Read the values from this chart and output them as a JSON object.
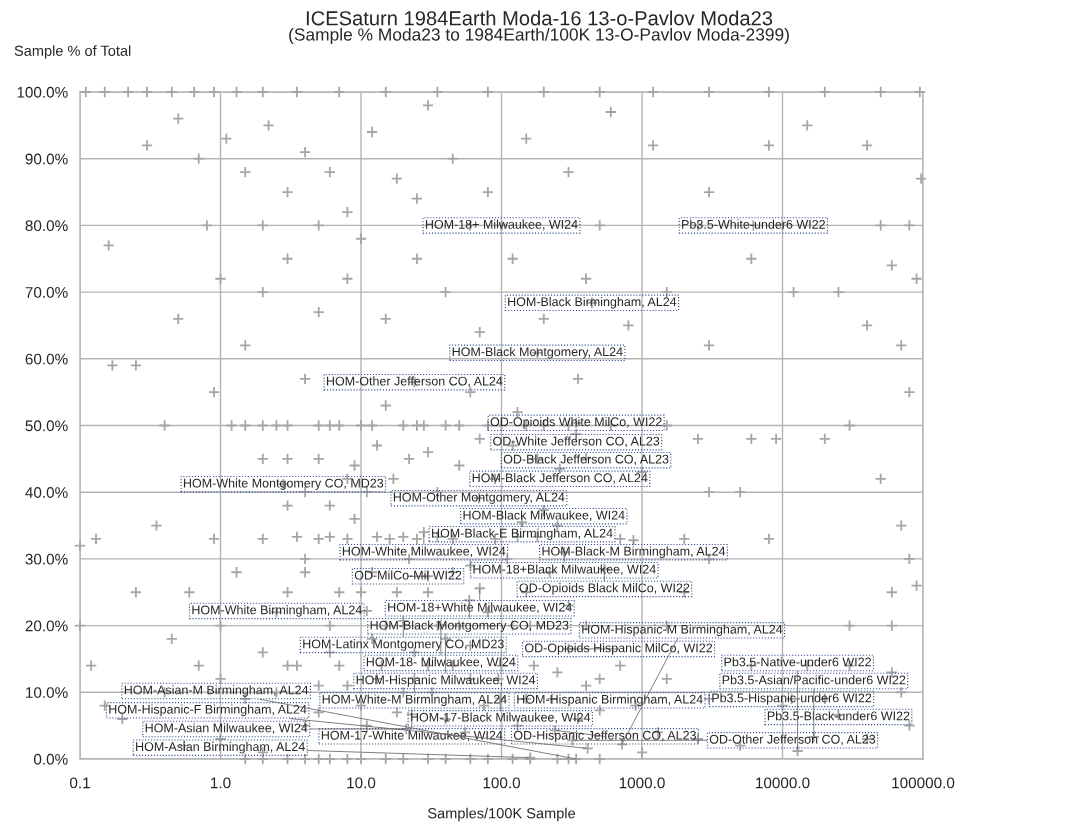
{
  "chart_data": {
    "type": "scatter",
    "title": "ICESaturn 1984Earth Moda-16 13-o-Pavlov Moda23",
    "subtitle": "(Sample % Moda23 to 1984Earth/100K 13-O-Pavlov Moda-2399)",
    "xlabel": "Samples/100K Sample",
    "ylabel": "Sample % of Total",
    "log": "x",
    "grid": true,
    "marker": "cross",
    "xlim": [
      0.1,
      100000
    ],
    "xticks": [
      {
        "value": 0.1,
        "label": "0.1"
      },
      {
        "value": 1,
        "label": "1.0"
      },
      {
        "value": 10,
        "label": "10.0"
      },
      {
        "value": 100,
        "label": "100.0"
      },
      {
        "value": 1000,
        "label": "1000.0"
      },
      {
        "value": 10000,
        "label": "10000.0"
      },
      {
        "value": 100000,
        "label": "100000.0"
      }
    ],
    "ylim": [
      0,
      100
    ],
    "yticks": [
      {
        "value": 0,
        "label": "0.0%"
      },
      {
        "value": 10,
        "label": "10.0%"
      },
      {
        "value": 20,
        "label": "20.0%"
      },
      {
        "value": 30,
        "label": "30.0%"
      },
      {
        "value": 40,
        "label": "40.0%"
      },
      {
        "value": 50,
        "label": "50.0%"
      },
      {
        "value": 60,
        "label": "60.0%"
      },
      {
        "value": 70,
        "label": "70.0%"
      },
      {
        "value": 80,
        "label": "80.0%"
      },
      {
        "value": 90,
        "label": "90.0%"
      },
      {
        "value": 100,
        "label": "100.0%"
      }
    ],
    "series": [
      {
        "color": "#a6a6a6",
        "x": [
          0.11,
          0.15,
          0.22,
          0.3,
          0.45,
          0.65,
          0.9,
          1.3,
          2,
          3.5,
          7,
          15,
          35,
          80,
          200,
          500,
          1200,
          3000,
          8000,
          20000,
          50000,
          95000,
          0.3,
          0.5,
          0.7,
          1.1,
          1.5,
          2.2,
          3,
          4,
          6,
          8,
          12,
          18,
          30,
          45,
          80,
          150,
          300,
          600,
          1200,
          3000,
          8000,
          15000,
          40000,
          97000,
          0.16,
          0.8,
          2,
          5,
          10,
          25,
          60,
          500,
          2500,
          10000,
          50000,
          80000,
          0.17,
          0.25,
          0.5,
          1,
          1.5,
          2,
          3,
          5,
          8,
          15,
          25,
          40,
          70,
          120,
          200,
          400,
          800,
          1500,
          3000,
          6000,
          12000,
          25000,
          40000,
          60000,
          90000,
          70000,
          0.4,
          0.9,
          1.2,
          2,
          3,
          4,
          6,
          8,
          10,
          15,
          20,
          30,
          40,
          60,
          80,
          120,
          200,
          350,
          600,
          1000,
          2500,
          6000,
          9000,
          20000,
          30000,
          50000,
          5000,
          3000,
          80000,
          0.1,
          0.13,
          0.35,
          0.6,
          0.9,
          1.3,
          2,
          2.5,
          3,
          4,
          5,
          7,
          9,
          12,
          16,
          22,
          30,
          45,
          60,
          90,
          150,
          250,
          400,
          700,
          1500,
          2000,
          3000,
          2000,
          8000,
          30000,
          60000,
          60000,
          70000,
          80000,
          90000,
          0.1,
          0.25,
          0.45,
          1,
          15,
          50,
          120,
          0.12,
          0.15,
          0.2,
          0.4,
          0.7,
          1,
          1.5,
          2,
          3,
          4,
          5,
          7,
          10,
          14,
          20,
          30,
          40,
          60,
          100,
          150,
          250,
          400,
          700,
          1500,
          3000,
          6000,
          15000,
          30000,
          60000,
          10000,
          20000,
          70000,
          80000,
          40000,
          0.55,
          1,
          2,
          3,
          5,
          8,
          15,
          30,
          60,
          120,
          250,
          500,
          1000,
          2500,
          5000,
          2,
          3,
          4,
          5,
          6,
          7,
          9,
          11,
          13,
          17,
          22,
          28,
          35,
          50,
          70,
          90,
          130,
          180,
          3,
          4,
          6,
          8,
          10,
          12,
          18,
          25,
          35,
          45,
          60,
          80,
          110,
          160,
          220,
          300,
          2.5,
          3.5,
          5,
          6,
          8,
          11,
          13,
          18,
          24,
          32,
          45,
          55,
          75,
          95,
          130,
          170,
          230,
          350,
          500,
          900,
          1300,
          1.5,
          2.5,
          5,
          12,
          25,
          50,
          100,
          150,
          300,
          1500,
          3.5,
          6,
          13,
          20,
          35,
          130,
          180,
          1.5,
          2,
          4,
          6,
          10,
          20,
          40,
          80,
          160,
          300,
          100,
          6200,
          440,
          180,
          24,
          340,
          340,
          400,
          260,
          2.8,
          69,
          200,
          140,
          28,
          870,
          280,
          540,
          30,
          70,
          59,
          11,
          20,
          37,
          40,
          300,
          24,
          98,
          11600,
          500,
          25000,
          23,
          21,
          240,
          320,
          16700,
          720,
          410,
          12800,
          160,
          340
        ],
        "values": [
          100,
          100,
          100,
          100,
          100,
          100,
          100,
          100,
          100,
          100,
          100,
          100,
          100,
          100,
          100,
          100,
          100,
          100,
          100,
          100,
          100,
          100,
          92,
          96,
          90,
          93,
          88,
          95,
          85,
          91,
          88,
          82,
          94,
          87,
          98,
          90,
          85,
          93,
          88,
          97,
          92,
          85,
          92,
          95,
          92,
          87,
          77,
          80,
          80,
          80,
          78,
          84,
          80,
          80,
          80,
          80,
          80,
          80,
          59,
          59,
          66,
          72,
          62,
          70,
          75,
          67,
          72,
          66,
          75,
          70,
          64,
          75,
          66,
          72,
          65,
          70,
          62,
          75,
          70,
          70,
          65,
          74,
          72,
          62,
          50,
          55,
          50,
          50,
          45,
          57,
          50,
          42,
          50,
          53,
          50,
          46,
          50,
          55,
          50,
          47,
          50,
          57,
          50,
          43,
          48,
          48,
          48,
          48,
          50,
          42,
          40,
          40,
          55,
          32,
          33,
          35,
          25,
          33,
          28,
          33,
          22,
          38,
          30,
          33,
          25,
          36,
          28,
          33,
          30,
          25,
          33,
          29,
          33,
          25,
          35,
          20,
          33,
          20,
          33,
          30,
          25,
          33,
          20,
          20,
          25,
          35,
          30,
          26,
          20,
          25,
          18,
          20,
          20,
          20,
          20,
          14,
          8,
          6,
          10,
          14,
          12,
          9,
          16,
          14,
          5,
          11,
          14,
          8,
          14,
          10,
          14,
          6,
          12,
          14,
          9,
          13,
          11,
          14,
          12,
          9,
          14,
          14,
          14,
          13,
          8,
          9,
          10,
          5,
          3,
          2,
          3,
          1,
          0,
          0,
          0,
          0,
          0,
          0,
          0,
          0,
          0,
          1,
          3,
          2,
          45,
          50,
          40,
          45,
          38,
          50,
          44,
          40,
          47,
          42,
          45,
          50,
          40,
          44,
          48,
          42,
          52,
          45,
          25,
          28,
          20,
          33,
          25,
          18,
          25,
          33,
          20,
          28,
          17,
          22,
          30,
          20,
          28,
          23,
          10,
          14,
          7,
          16,
          11,
          5,
          12,
          7,
          16,
          10,
          14,
          4,
          8,
          12,
          5,
          14,
          9,
          6,
          12,
          8,
          4,
          50,
          50,
          50,
          50,
          50,
          50,
          50,
          50,
          50,
          50,
          33.3,
          33.3,
          33.3,
          33.3,
          33.3,
          33.3,
          33.3,
          0,
          0,
          0,
          0,
          0,
          0,
          0,
          0,
          0,
          0,
          80,
          80,
          68.4,
          60.9,
          56.5,
          50.4,
          48.7,
          45.1,
          43.5,
          41.2,
          39.1,
          37.3,
          35.5,
          34,
          32.8,
          31,
          28.5,
          27.4,
          25.6,
          23.8,
          22.2,
          20.7,
          20.1,
          18,
          16.5,
          12.1,
          9.1,
          9,
          7.3,
          6.6,
          6.7,
          4.5,
          4.3,
          2.8,
          3.3,
          2.2,
          1.6,
          1.2,
          0.2,
          0
        ]
      }
    ],
    "annotations": [
      {
        "text": "HOM-18+ Milwaukee, WI24",
        "x": 100,
        "y": 80
      },
      {
        "text": "Pb3.5-White-under6 WI22",
        "x": 6200,
        "y": 80
      },
      {
        "text": "HOM-Black Birmingham, AL24",
        "x": 440,
        "y": 68.4
      },
      {
        "text": "HOM-Black Montgomery, AL24",
        "x": 180,
        "y": 60.9
      },
      {
        "text": "HOM-Other Jefferson CO, AL24",
        "x": 24,
        "y": 56.5
      },
      {
        "text": "OD-Opioids White MilCo, WI22",
        "x": 340,
        "y": 50.4
      },
      {
        "text": "OD-White Jefferson CO, AL23",
        "x": 340,
        "y": 48.7
      },
      {
        "text": "OD-Black Jefferson CO, AL23",
        "x": 400,
        "y": 45.1
      },
      {
        "text": "HOM-Black Jefferson CO, AL24",
        "x": 260,
        "y": 43.5
      },
      {
        "text": "HOM-White Montgomery CO, MD23",
        "x": 2.8,
        "y": 41.2
      },
      {
        "text": "HOM-Other Montgomery, AL24",
        "x": 69,
        "y": 39.1
      },
      {
        "text": "HOM-Black Milwaukee, WI24",
        "x": 200,
        "y": 37.3
      },
      {
        "text": "HOM-Black-E Birmingham, AL24",
        "x": 140,
        "y": 35.5
      },
      {
        "text": "HOM-White Milwaukee, WI24",
        "x": 28,
        "y": 34
      },
      {
        "text": "HOM-Black-M Birmingham, AL24",
        "x": 870,
        "y": 32.8
      },
      {
        "text": "HOM-18+Black Milwaukee, WI24",
        "x": 280,
        "y": 31
      },
      {
        "text": "OD-Opioids Black MilCo, WI22",
        "x": 540,
        "y": 28.5
      },
      {
        "text": "OD-MilCo-Mil WI22",
        "x": 30,
        "y": 27.4
      },
      {
        "text": "HOM-18+White Milwaukee, WI24",
        "x": 70,
        "y": 25.6
      },
      {
        "text": "HOM-Black Montgomery CO, MD23",
        "x": 59,
        "y": 23.8
      },
      {
        "text": "HOM-White Birmingham, AL24",
        "x": 11,
        "y": 22.2
      },
      {
        "text": "HOM-Latinx Montgomery CO, MD23",
        "x": 20,
        "y": 20.7
      },
      {
        "text": "HOM-18- Milwaukee, WI24",
        "x": 37,
        "y": 20.1
      },
      {
        "text": "HOM-Hispanic Milwaukee, WI24",
        "x": 40,
        "y": 18
      },
      {
        "text": "OD-Opioids Hispanic MilCo, WI22",
        "x": 300,
        "y": 16.5
      },
      {
        "text": "HOM-White-M Birmingham, AL24",
        "x": 24,
        "y": 12.1
      },
      {
        "text": "HOM-17-Black Milwaukee, WI24",
        "x": 98,
        "y": 9.1
      },
      {
        "text": "Pb3.5-Hispanic-under6 WI22",
        "x": 11600,
        "y": 9
      },
      {
        "text": "HOM-Hispanic Birmingham, AL24",
        "x": 500,
        "y": 7.3
      },
      {
        "text": "Pb3.5-Black-under6 WI22",
        "x": 25000,
        "y": 6.6
      },
      {
        "text": "HOM-17-White Milwaukee, WI24",
        "x": 23,
        "y": 6.7
      },
      {
        "text": "HOM-Asian Milwaukee, WI24",
        "x": 21,
        "y": 4.5
      },
      {
        "text": "OD-Hispanic Jefferson CO, AL23",
        "x": 240,
        "y": 4.3
      },
      {
        "text": "OD-Other Jefferson CO, AL23",
        "x": 320,
        "y": 2.8
      },
      {
        "text": "Pb3.5-Asian/Pacific-under6 WI22",
        "x": 16700,
        "y": 3.3
      },
      {
        "text": "HOM-Hispanic-M Birmingham, AL24",
        "x": 720,
        "y": 2.2
      },
      {
        "text": "HOM-Hispanic-F Birmingham, AL24",
        "x": 410,
        "y": 1.6
      },
      {
        "text": "Pb3.5-Native-under6 WI22",
        "x": 12800,
        "y": 1.2
      },
      {
        "text": "HOM-Asian Birmingham, AL24",
        "x": 160,
        "y": 0.2
      },
      {
        "text": "HOM-Asian-M Birmingham, AL24",
        "x": 340,
        "y": 0
      }
    ]
  }
}
